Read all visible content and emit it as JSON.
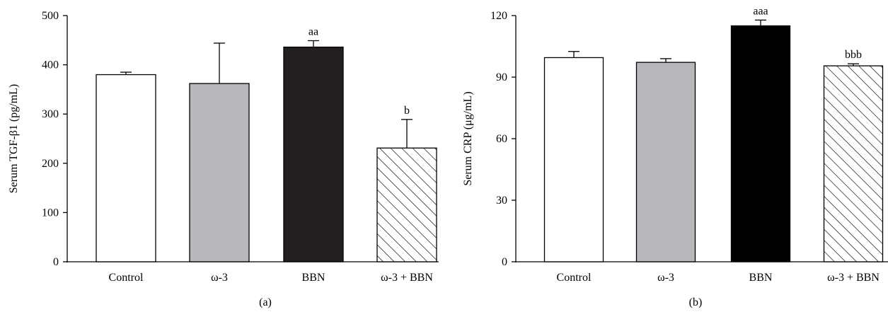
{
  "chart_data": [
    {
      "type": "bar",
      "panel_label": "(a)",
      "ylabel": "Serum TGF-β1 (pg/mL)",
      "categories": [
        "Control",
        "ω-3",
        "BBN",
        "ω-3 + BBN"
      ],
      "values": [
        380,
        362,
        436,
        231
      ],
      "errors": [
        5,
        82,
        13,
        58
      ],
      "significance": [
        "",
        "",
        "aa",
        "b"
      ],
      "fills": [
        "white",
        "#b8b8bc",
        "#231f20",
        "hatch"
      ],
      "ylim": [
        0,
        500
      ],
      "yticks": [
        0,
        100,
        200,
        300,
        400,
        500
      ],
      "grid": false
    },
    {
      "type": "bar",
      "panel_label": "(b)",
      "ylabel": "Serum CRP (μg/mL)",
      "categories": [
        "Control",
        "ω-3",
        "BBN",
        "ω-3 + BBN"
      ],
      "values": [
        99.5,
        97.2,
        115,
        95.5
      ],
      "errors": [
        3,
        1.8,
        2.8,
        1
      ],
      "significance": [
        "",
        "",
        "aaa",
        "bbb"
      ],
      "fills": [
        "white",
        "#b8b8bc",
        "#000000",
        "hatch"
      ],
      "ylim": [
        0,
        120
      ],
      "yticks": [
        0,
        30,
        60,
        90,
        120
      ],
      "grid": false
    }
  ]
}
